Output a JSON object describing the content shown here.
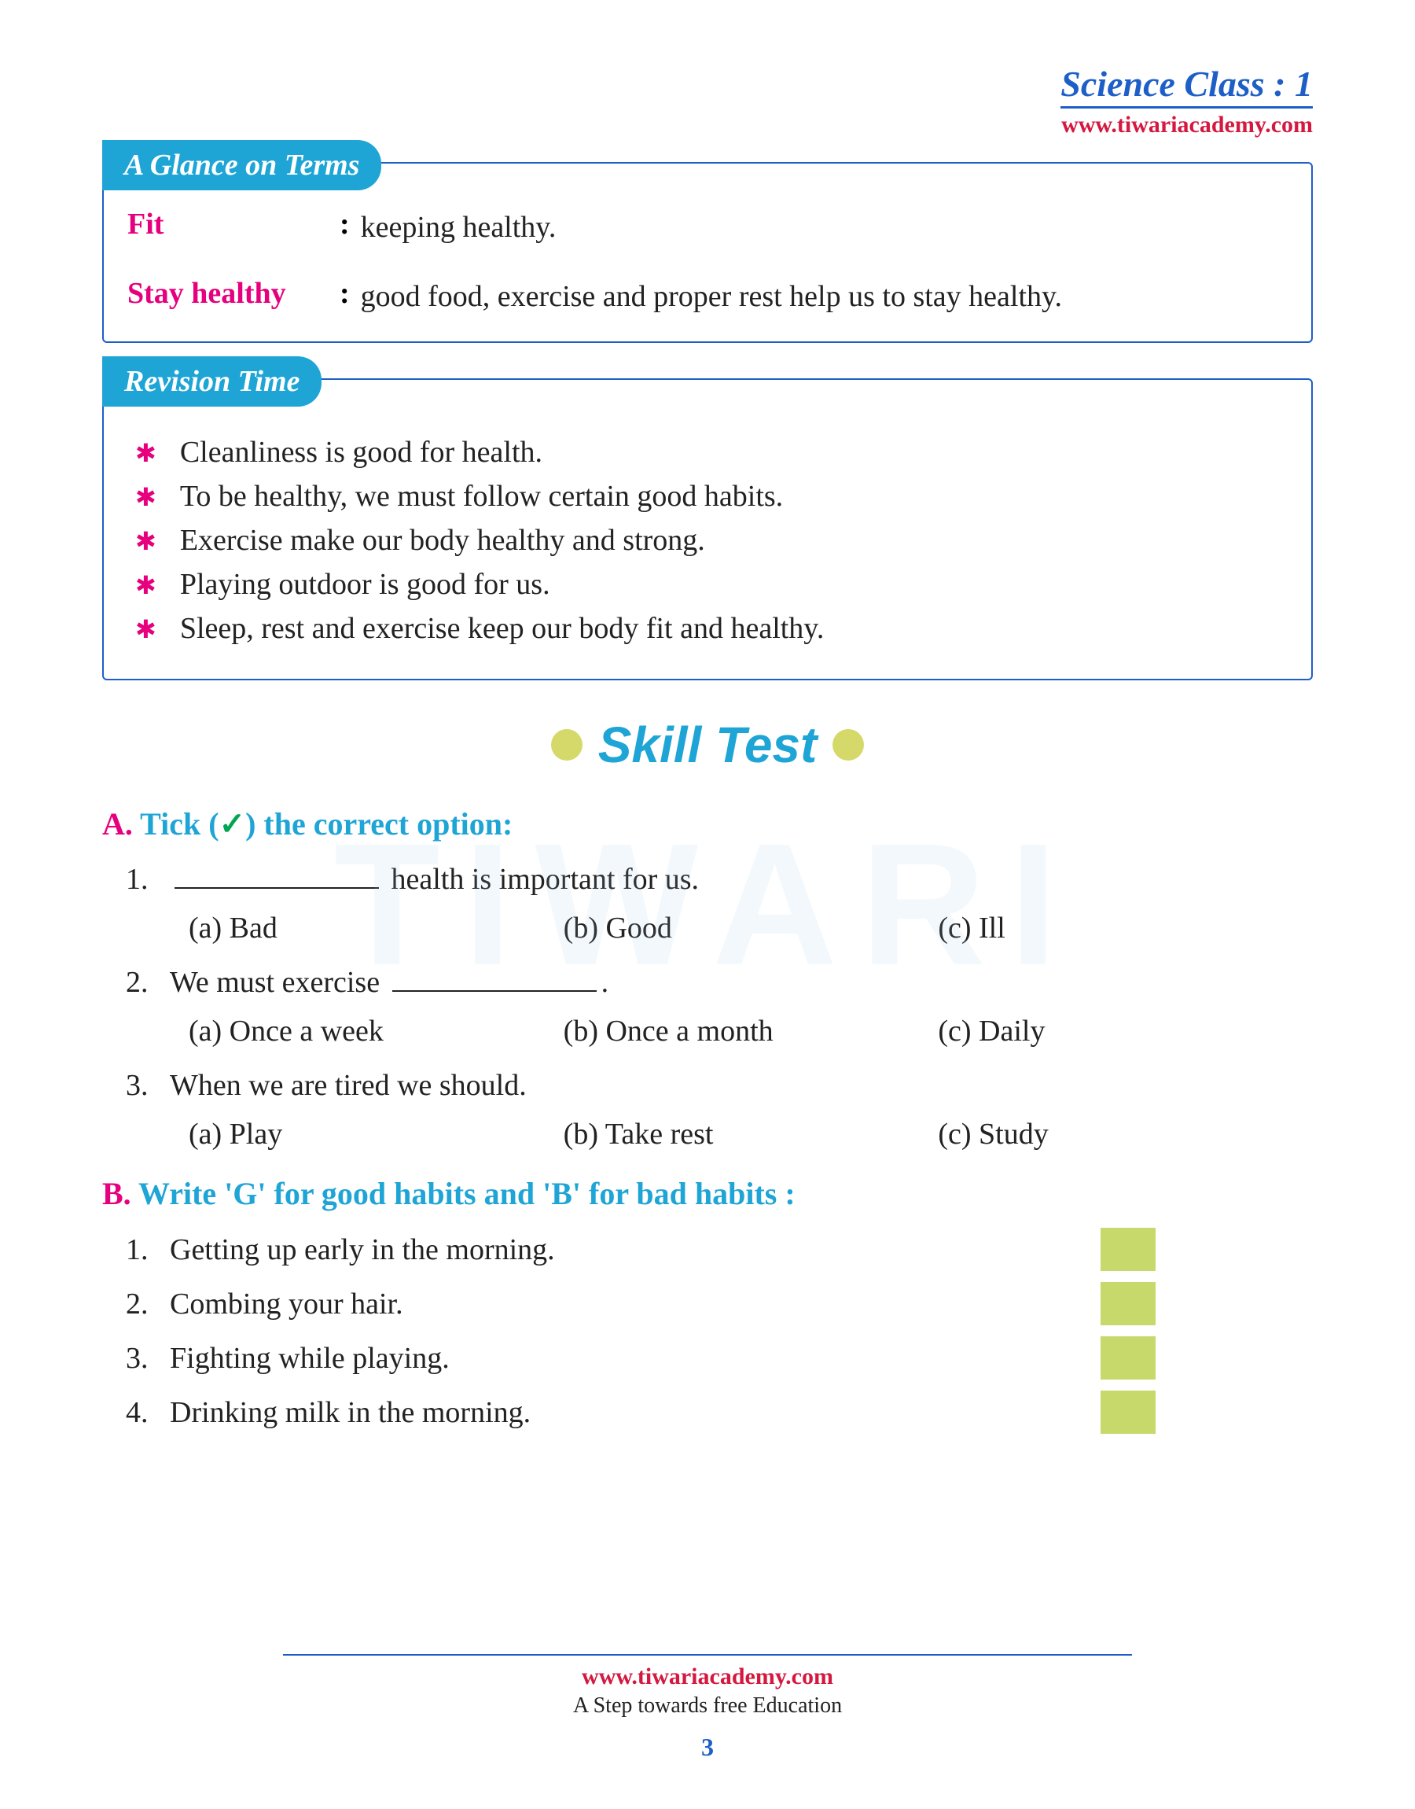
{
  "header": {
    "title": "Science Class : 1",
    "url": "www.tiwariacademy.com"
  },
  "glance": {
    "title": "A Glance on Terms",
    "rows": [
      {
        "term": "Fit",
        "def": "keeping healthy."
      },
      {
        "term": "Stay healthy",
        "def": "good food, exercise and proper rest help us to stay healthy."
      }
    ]
  },
  "revision": {
    "title": "Revision Time",
    "items": [
      "Cleanliness is good for health.",
      "To be healthy, we must follow certain good habits.",
      "Exercise make our body healthy and strong.",
      "Playing outdoor is good for us.",
      "Sleep, rest and exercise keep our body fit and healthy."
    ]
  },
  "skill": {
    "title": "Skill Test"
  },
  "secA": {
    "letter": "A.",
    "title_pre": "Tick (",
    "check": "✓",
    "title_post": ") the correct option:",
    "questions": [
      {
        "num": "1.",
        "blank": true,
        "after": " health is important for us.",
        "opts": [
          "(a) Bad",
          "(b)  Good",
          "(c) Ill"
        ]
      },
      {
        "num": "2.",
        "before": "We must exercise ",
        "blank": true,
        "after": ".",
        "opts": [
          "(a) Once a week",
          "(b) Once a month",
          "(c) Daily"
        ]
      },
      {
        "num": "3.",
        "before": "When we are tired we should.",
        "opts": [
          "(a) Play",
          "(b)  Take rest",
          "(c) Study"
        ]
      }
    ]
  },
  "secB": {
    "letter": "B.",
    "title": "Write 'G' for good habits and 'B' for bad habits :",
    "items": [
      {
        "num": "1.",
        "text": "Getting up early in the morning."
      },
      {
        "num": "2.",
        "text": "Combing your hair."
      },
      {
        "num": "3.",
        "text": "Fighting while playing."
      },
      {
        "num": "4.",
        "text": "Drinking milk in the morning."
      }
    ]
  },
  "footer": {
    "url": "www.tiwariacademy.com",
    "tag": "A Step towards free Education",
    "page": "3"
  },
  "colors": {
    "blue": "#1e5fc7",
    "cyan": "#1ea5d6",
    "pink": "#e6007e",
    "red": "#d4183f",
    "green_box": "#c7d96a",
    "dot": "#d4d96a"
  }
}
